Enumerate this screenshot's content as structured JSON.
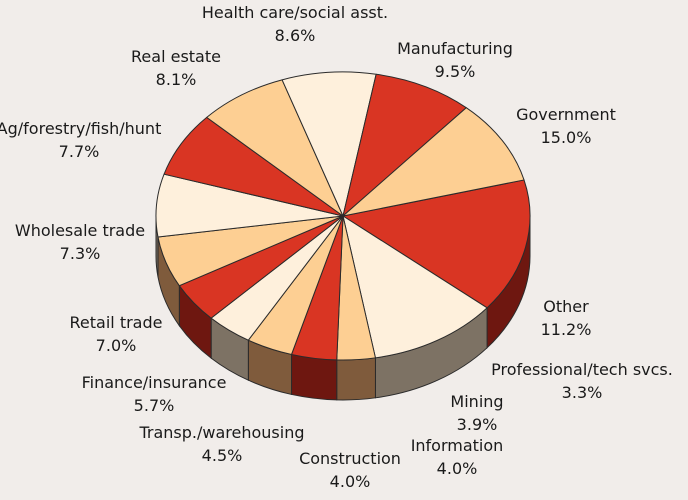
{
  "chart_data": {
    "type": "pie",
    "title": "",
    "start_label": "Government",
    "direction": "clockwise",
    "colors": {
      "red": "#d93523",
      "peach": "#fdcf93",
      "cream": "#fef0dc",
      "side_red": "#6e1710",
      "side_peach": "#7f5b3c",
      "side_cream": "#7d7264",
      "edge": "#2b2b2b",
      "background": "#f1edea"
    },
    "slices": [
      {
        "label": "Government",
        "value": 15.0,
        "display": "15.0%",
        "color": "red"
      },
      {
        "label": "Other",
        "value": 11.2,
        "display": "11.2%",
        "color": "cream"
      },
      {
        "label": "Professional/tech svcs.",
        "value": 3.3,
        "display": "3.3%",
        "color": "peach"
      },
      {
        "label": "Mining",
        "value": 3.9,
        "display": "3.9%",
        "color": "red"
      },
      {
        "label": "Information",
        "value": 4.0,
        "display": "4.0%",
        "color": "peach"
      },
      {
        "label": "Construction",
        "value": 4.0,
        "display": "4.0%",
        "color": "cream"
      },
      {
        "label": "Transp./warehousing",
        "value": 4.5,
        "display": "4.5%",
        "color": "red"
      },
      {
        "label": "Finance/insurance",
        "value": 5.7,
        "display": "5.7%",
        "color": "peach"
      },
      {
        "label": "Retail trade",
        "value": 7.0,
        "display": "7.0%",
        "color": "cream"
      },
      {
        "label": "Wholesale trade",
        "value": 7.3,
        "display": "7.3%",
        "color": "red"
      },
      {
        "label": "Ag/forestry/fish/hunt",
        "value": 7.7,
        "display": "7.7%",
        "color": "peach"
      },
      {
        "label": "Real estate",
        "value": 8.1,
        "display": "8.1%",
        "color": "cream"
      },
      {
        "label": "Health care/social asst.",
        "value": 8.6,
        "display": "8.6%",
        "color": "red"
      },
      {
        "label": "Manufacturing",
        "value": 9.5,
        "display": "9.5%",
        "color": "peach"
      }
    ]
  }
}
